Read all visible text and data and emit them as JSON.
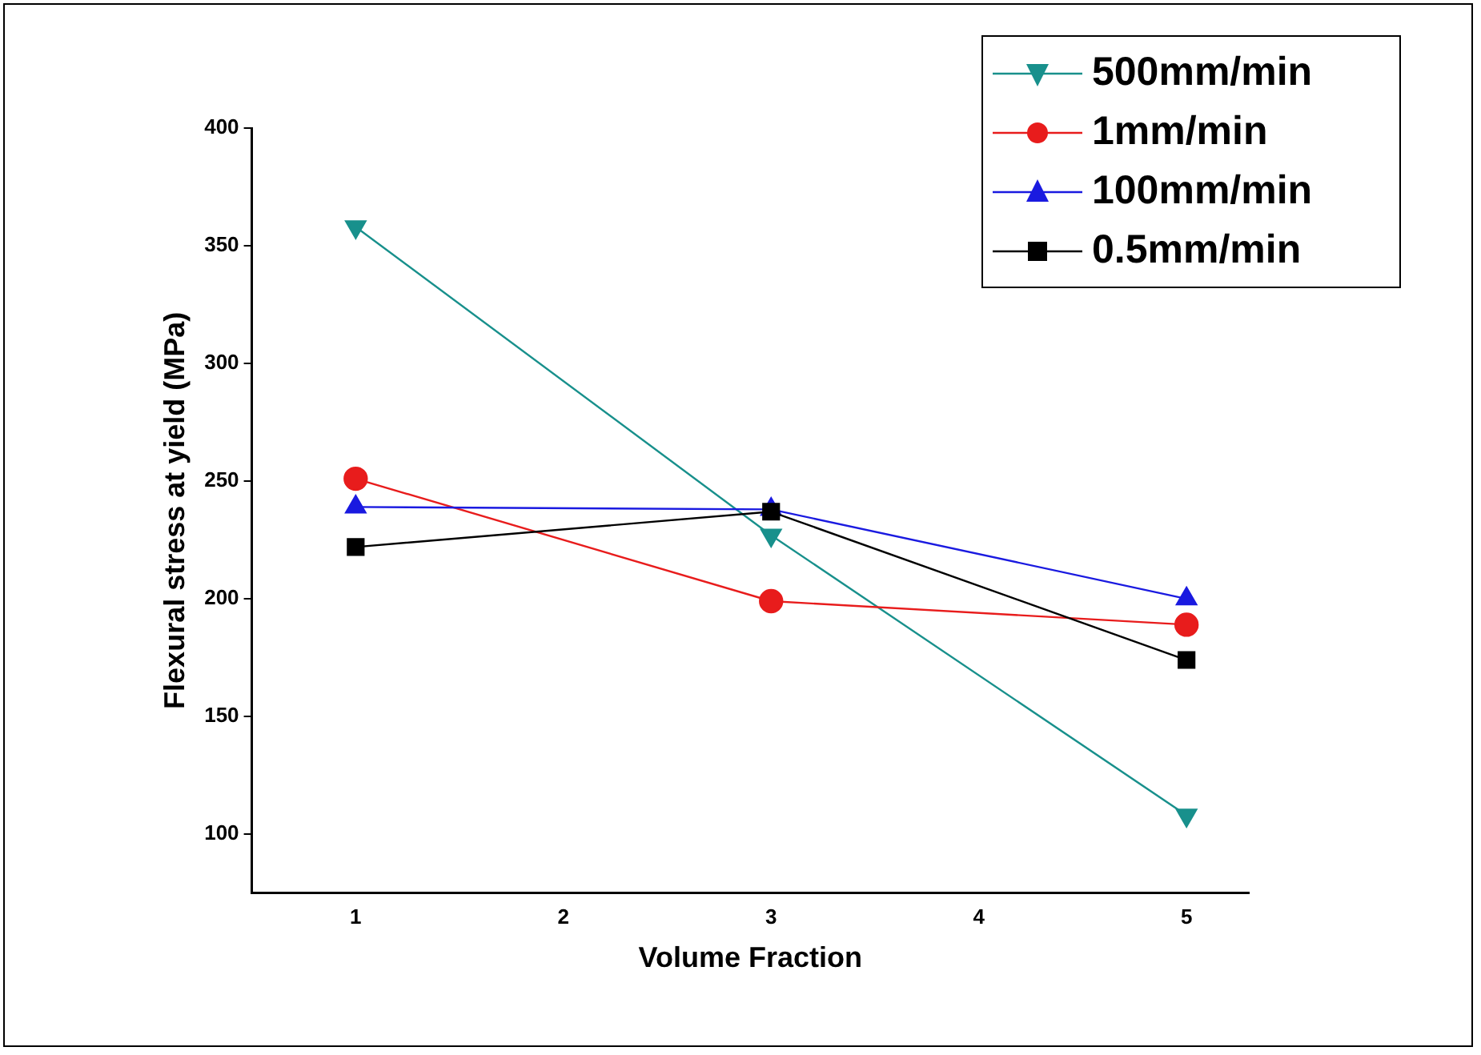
{
  "chart_data": {
    "type": "line",
    "xlabel": "Volume Fraction",
    "ylabel": "Flexural stress at yield (MPa)",
    "x": [
      1,
      3,
      5
    ],
    "xlim": [
      0.5,
      5.3
    ],
    "xticks": [
      1,
      2,
      3,
      4,
      5
    ],
    "ylim": [
      75,
      400
    ],
    "yticks": [
      100,
      150,
      200,
      250,
      300,
      350,
      400
    ],
    "grid": false,
    "legend": "top right",
    "line_style": "solid",
    "series": [
      {
        "name": "500mm/min",
        "color": "#18908c",
        "marker": "triangle-down",
        "values": [
          358,
          227,
          108
        ]
      },
      {
        "name": "1mm/min",
        "color": "#e81c1c",
        "marker": "circle",
        "values": [
          251,
          199,
          189
        ]
      },
      {
        "name": "100mm/min",
        "color": "#1a1ae0",
        "marker": "triangle",
        "values": [
          239,
          238,
          200
        ]
      },
      {
        "name": "0.5mm/min",
        "color": "#000000",
        "marker": "square",
        "values": [
          222,
          237,
          174
        ]
      }
    ]
  }
}
